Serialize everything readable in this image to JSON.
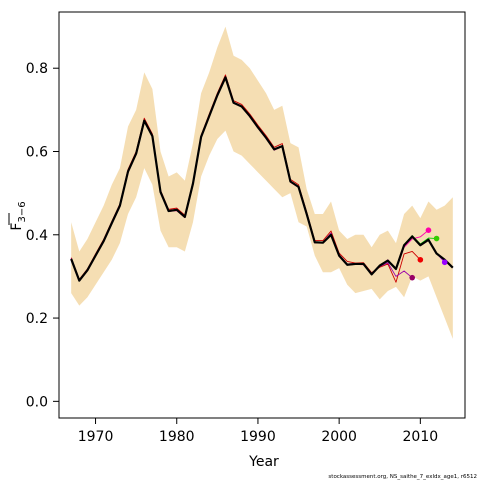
{
  "chart_data": {
    "type": "line",
    "xlabel": "Year",
    "ylabel_main": "F",
    "ylabel_sub": "3−6",
    "xlim": [
      1965.5,
      2015.5
    ],
    "ylim": [
      -0.04,
      0.935
    ],
    "x_ticks": [
      1970,
      1980,
      1990,
      2000,
      2010
    ],
    "y_ticks": [
      0.0,
      0.2,
      0.4,
      0.6,
      0.8
    ],
    "x_tick_labels": [
      "1970",
      "1980",
      "1990",
      "2000",
      "2010"
    ],
    "y_tick_labels": [
      "0.0",
      "0.2",
      "0.4",
      "0.6",
      "0.8"
    ],
    "footer": "stockassessment.org, NS_saithe_7_exldx_age1, r6512",
    "band": {
      "color": "#f5deb3",
      "x": [
        1967,
        1968,
        1969,
        1970,
        1971,
        1972,
        1973,
        1974,
        1975,
        1976,
        1977,
        1978,
        1979,
        1980,
        1981,
        1982,
        1983,
        1984,
        1985,
        1986,
        1987,
        1988,
        1989,
        1990,
        1991,
        1992,
        1993,
        1994,
        1995,
        1996,
        1997,
        1998,
        1999,
        2000,
        2001,
        2002,
        2003,
        2004,
        2005,
        2006,
        2007,
        2008,
        2009,
        2010,
        2011,
        2012,
        2013,
        2014
      ],
      "upper": [
        0.43,
        0.36,
        0.39,
        0.43,
        0.47,
        0.52,
        0.56,
        0.66,
        0.7,
        0.79,
        0.75,
        0.6,
        0.54,
        0.55,
        0.53,
        0.62,
        0.74,
        0.79,
        0.85,
        0.9,
        0.83,
        0.82,
        0.8,
        0.77,
        0.74,
        0.7,
        0.71,
        0.62,
        0.61,
        0.51,
        0.45,
        0.45,
        0.48,
        0.41,
        0.39,
        0.4,
        0.4,
        0.37,
        0.4,
        0.41,
        0.38,
        0.45,
        0.47,
        0.44,
        0.48,
        0.46,
        0.47,
        0.49
      ],
      "lower": [
        0.26,
        0.23,
        0.25,
        0.28,
        0.31,
        0.34,
        0.38,
        0.45,
        0.49,
        0.56,
        0.52,
        0.41,
        0.37,
        0.37,
        0.36,
        0.43,
        0.54,
        0.59,
        0.63,
        0.65,
        0.6,
        0.59,
        0.57,
        0.55,
        0.53,
        0.51,
        0.49,
        0.5,
        0.43,
        0.42,
        0.35,
        0.31,
        0.31,
        0.32,
        0.28,
        0.26,
        0.265,
        0.27,
        0.245,
        0.265,
        0.275,
        0.25,
        0.3,
        0.29,
        0.3,
        0.25,
        0.2,
        0.15
      ]
    },
    "series": [
      {
        "color": "#000000",
        "x": [
          1967,
          1968,
          1969,
          1970,
          1971,
          1972,
          1973,
          1974,
          1975,
          1976,
          1977,
          1978,
          1979,
          1980,
          1981,
          1982,
          1983,
          1984,
          1985,
          1986,
          1987,
          1988,
          1989,
          1990,
          1991,
          1992,
          1993,
          1994,
          1995,
          1996,
          1997,
          1998,
          1999,
          2000,
          2001,
          2002,
          2003,
          2004,
          2005,
          2006,
          2007,
          2008,
          2009,
          2010,
          2011,
          2012,
          2013,
          2014
        ],
        "values": [
          0.342,
          0.29,
          0.315,
          0.35,
          0.385,
          0.428,
          0.47,
          0.552,
          0.595,
          0.674,
          0.637,
          0.503,
          0.457,
          0.46,
          0.443,
          0.523,
          0.635,
          0.685,
          0.735,
          0.778,
          0.717,
          0.708,
          0.685,
          0.658,
          0.633,
          0.605,
          0.613,
          0.528,
          0.515,
          0.45,
          0.382,
          0.381,
          0.4,
          0.35,
          0.328,
          0.33,
          0.33,
          0.305,
          0.326,
          0.338,
          0.318,
          0.375,
          0.396,
          0.375,
          0.388,
          0.355,
          0.34,
          0.321
        ]
      },
      {
        "color": "#cc0000",
        "x": [
          1967,
          1968,
          1969,
          1970,
          1971,
          1972,
          1973,
          1974,
          1975,
          1976,
          1977,
          1978,
          1979,
          1980,
          1981,
          1982,
          1983,
          1984,
          1985,
          1986,
          1987,
          1988,
          1989,
          1990,
          1991,
          1992,
          1993,
          1994,
          1995,
          1996,
          1997,
          1998,
          1999,
          2000,
          2001,
          2002,
          2003,
          2004,
          2005,
          2006,
          2007,
          2008,
          2009,
          2010
        ],
        "values": [
          0.345,
          0.293,
          0.318,
          0.354,
          0.389,
          0.432,
          0.474,
          0.557,
          0.6,
          0.68,
          0.642,
          0.507,
          0.461,
          0.464,
          0.447,
          0.527,
          0.639,
          0.69,
          0.74,
          0.784,
          0.722,
          0.713,
          0.69,
          0.663,
          0.638,
          0.61,
          0.619,
          0.533,
          0.52,
          0.455,
          0.386,
          0.386,
          0.409,
          0.356,
          0.336,
          0.332,
          0.333,
          0.309,
          0.322,
          0.33,
          0.286,
          0.354,
          0.36,
          0.34
        ]
      },
      {
        "color": "#ff00aa",
        "x": [
          1967,
          1968,
          1969,
          1970,
          1971,
          1972,
          1973,
          1974,
          1975,
          1976,
          1977,
          1978,
          1979,
          1980,
          1981,
          1982,
          1983,
          1984,
          1985,
          1986,
          1987,
          1988,
          1989,
          1990,
          1991,
          1992,
          1993,
          1994,
          1995,
          1996,
          1997,
          1998,
          1999,
          2000,
          2001,
          2002,
          2003,
          2004,
          2005,
          2006,
          2007,
          2008,
          2009,
          2010,
          2011
        ],
        "values": [
          0.34,
          0.289,
          0.313,
          0.349,
          0.384,
          0.426,
          0.468,
          0.55,
          0.594,
          0.672,
          0.636,
          0.501,
          0.456,
          0.458,
          0.441,
          0.521,
          0.633,
          0.684,
          0.733,
          0.776,
          0.716,
          0.707,
          0.683,
          0.656,
          0.631,
          0.603,
          0.612,
          0.526,
          0.514,
          0.449,
          0.38,
          0.38,
          0.403,
          0.348,
          0.327,
          0.329,
          0.328,
          0.304,
          0.325,
          0.34,
          0.316,
          0.37,
          0.39,
          0.395,
          0.411
        ]
      },
      {
        "color": "#00cc00",
        "x": [
          1967,
          1968,
          1969,
          1970,
          1971,
          1972,
          1973,
          1974,
          1975,
          1976,
          1977,
          1978,
          1979,
          1980,
          1981,
          1982,
          1983,
          1984,
          1985,
          1986,
          1987,
          1988,
          1989,
          1990,
          1991,
          1992,
          1993,
          1994,
          1995,
          1996,
          1997,
          1998,
          1999,
          2000,
          2001,
          2002,
          2003,
          2004,
          2005,
          2006,
          2007,
          2008,
          2009,
          2010,
          2011,
          2012
        ],
        "values": [
          0.341,
          0.29,
          0.314,
          0.35,
          0.385,
          0.427,
          0.469,
          0.551,
          0.595,
          0.673,
          0.636,
          0.502,
          0.456,
          0.459,
          0.442,
          0.522,
          0.634,
          0.685,
          0.734,
          0.777,
          0.717,
          0.708,
          0.684,
          0.657,
          0.632,
          0.604,
          0.613,
          0.527,
          0.515,
          0.45,
          0.381,
          0.381,
          0.401,
          0.349,
          0.327,
          0.329,
          0.329,
          0.305,
          0.326,
          0.339,
          0.318,
          0.376,
          0.398,
          0.378,
          0.392,
          0.391
        ]
      },
      {
        "color": "#9900aa",
        "x": [
          1967,
          1968,
          1969,
          1970,
          1971,
          1972,
          1973,
          1974,
          1975,
          1976,
          1977,
          1978,
          1979,
          1980,
          1981,
          1982,
          1983,
          1984,
          1985,
          1986,
          1987,
          1988,
          1989,
          1990,
          1991,
          1992,
          1993,
          1994,
          1995,
          1996,
          1997,
          1998,
          1999,
          2000,
          2001,
          2002,
          2003,
          2004,
          2005,
          2006,
          2007,
          2008,
          2009
        ],
        "values": [
          0.343,
          0.291,
          0.316,
          0.351,
          0.386,
          0.429,
          0.471,
          0.553,
          0.596,
          0.675,
          0.638,
          0.504,
          0.458,
          0.461,
          0.444,
          0.524,
          0.636,
          0.686,
          0.736,
          0.779,
          0.718,
          0.709,
          0.686,
          0.659,
          0.634,
          0.606,
          0.614,
          0.529,
          0.516,
          0.451,
          0.383,
          0.382,
          0.404,
          0.352,
          0.33,
          0.331,
          0.331,
          0.307,
          0.324,
          0.333,
          0.3,
          0.313,
          0.297
        ]
      },
      {
        "color": "#aa00ff",
        "x": [
          1967,
          1968,
          1969,
          1970,
          1971,
          1972,
          1973,
          1974,
          1975,
          1976,
          1977,
          1978,
          1979,
          1980,
          1981,
          1982,
          1983,
          1984,
          1985,
          1986,
          1987,
          1988,
          1989,
          1990,
          1991,
          1992,
          1993,
          1994,
          1995,
          1996,
          1997,
          1998,
          1999,
          2000,
          2001,
          2002,
          2003,
          2004,
          2005,
          2006,
          2007,
          2008,
          2009,
          2010,
          2011,
          2012,
          2013
        ],
        "values": [
          0.342,
          0.29,
          0.315,
          0.35,
          0.385,
          0.428,
          0.47,
          0.552,
          0.595,
          0.674,
          0.637,
          0.503,
          0.457,
          0.46,
          0.443,
          0.523,
          0.635,
          0.685,
          0.735,
          0.778,
          0.717,
          0.708,
          0.685,
          0.658,
          0.633,
          0.605,
          0.613,
          0.528,
          0.515,
          0.45,
          0.382,
          0.381,
          0.401,
          0.35,
          0.328,
          0.33,
          0.33,
          0.305,
          0.326,
          0.338,
          0.318,
          0.375,
          0.396,
          0.375,
          0.388,
          0.355,
          0.334
        ]
      }
    ],
    "endpoints": [
      {
        "x": 2009,
        "y": 0.297,
        "color": "#990066"
      },
      {
        "x": 2010,
        "y": 0.34,
        "color": "#ee0000"
      },
      {
        "x": 2011,
        "y": 0.411,
        "color": "#ff00aa"
      },
      {
        "x": 2012,
        "y": 0.391,
        "color": "#33cc00"
      },
      {
        "x": 2013,
        "y": 0.334,
        "color": "#9900ff"
      }
    ]
  }
}
